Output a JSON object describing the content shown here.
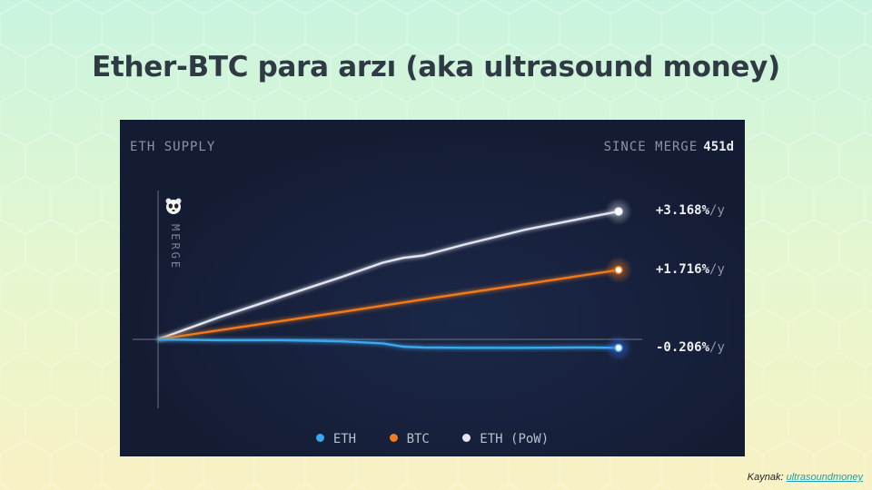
{
  "slide": {
    "title": "Ether-BTC para arzı (aka ultrasound money)",
    "source_prefix": "Kaynak:",
    "source_link": "ultrasoundmoney"
  },
  "panel": {
    "left_label": "ETH SUPPLY",
    "right_label": "SINCE MERGE",
    "right_value": "451d",
    "merge_label": "MERGE",
    "merge_icon": "panda-icon"
  },
  "colors": {
    "eth": "#3aa8f0",
    "btc": "#f07a1c",
    "eth_pow": "#e3e6f0",
    "panel_bg": "#141c33"
  },
  "chart_data": {
    "type": "line",
    "title": "",
    "xlabel": "",
    "ylabel": "",
    "x_range_days": [
      0,
      451
    ],
    "series": [
      {
        "name": "ETH",
        "key": "eth",
        "end_label": "-0.206%",
        "unit": "/y",
        "x": [
          0,
          60,
          120,
          180,
          220,
          240,
          260,
          300,
          360,
          420,
          451
        ],
        "y": [
          0.0,
          -0.02,
          -0.02,
          -0.05,
          -0.1,
          -0.18,
          -0.2,
          -0.21,
          -0.21,
          -0.2,
          -0.21
        ]
      },
      {
        "name": "BTC",
        "key": "btc",
        "end_label": "+1.716%",
        "unit": "/y",
        "x": [
          0,
          90,
          180,
          270,
          360,
          451
        ],
        "y": [
          0.0,
          0.34,
          0.68,
          1.03,
          1.37,
          1.72
        ]
      },
      {
        "name": "ETH (PoW)",
        "key": "eth_pow",
        "end_label": "+3.168%",
        "unit": "/y",
        "x": [
          0,
          60,
          120,
          180,
          220,
          240,
          260,
          300,
          360,
          420,
          451
        ],
        "y": [
          0.0,
          0.55,
          1.05,
          1.55,
          1.9,
          2.02,
          2.08,
          2.35,
          2.72,
          3.02,
          3.17
        ]
      }
    ],
    "legend": [
      "ETH",
      "BTC",
      "ETH (PoW)"
    ],
    "legend_position": "bottom"
  }
}
